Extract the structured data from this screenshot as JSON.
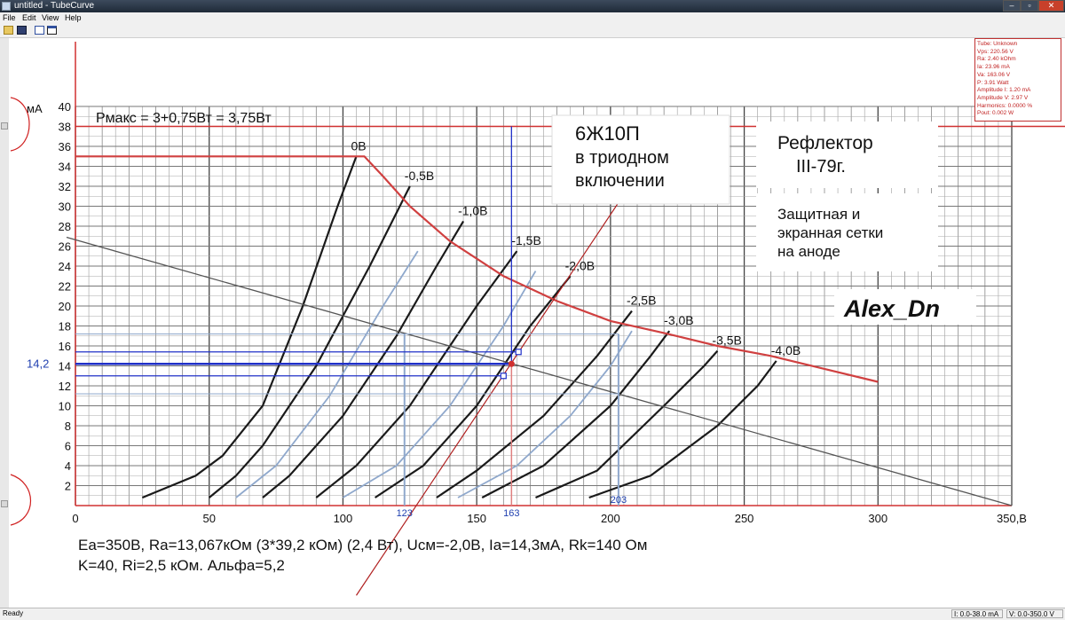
{
  "window": {
    "title": "untitled - TubeCurve",
    "min": "–",
    "max": "▫",
    "close": "✕"
  },
  "menu": [
    "File",
    "Edit",
    "View",
    "Help"
  ],
  "toolbar": {
    "icons": [
      "open-icon",
      "save-icon",
      "copy-icon",
      "window-icon"
    ]
  },
  "info": {
    "lines": [
      "Tube: Unknown",
      "Vps: 220.56 V",
      "Ra: 2.40 kOhm",
      "Ia: 23.96 mA",
      "Va: 163.06 V",
      "P: 3.91 Watt",
      "Amplitude I: 1.20 mA",
      "Amplitude V: 2.97 V",
      "Harmonics: 0.0000 %",
      "Pout: 0.002 W"
    ]
  },
  "status": {
    "left": "Ready",
    "current_range": "I: 0.0-38.0 mA",
    "voltage_range": "V: 0.0-350.0 V"
  },
  "colors": {
    "accent_red": "#d03030",
    "blue": "#2030c8",
    "grid": "#666666",
    "curve_light": "#8fa8cc"
  },
  "chart_data": {
    "type": "line",
    "y_unit": "мА",
    "x_unit": "350,B",
    "xlim": [
      0,
      350
    ],
    "ylim": [
      0,
      40
    ],
    "x_ticks": [
      "0",
      "50",
      "100",
      "150",
      "200",
      "250",
      "300",
      "350,B"
    ],
    "y_ticks": [
      "2",
      "4",
      "6",
      "8",
      "10",
      "12",
      "14",
      "16",
      "18",
      "20",
      "22",
      "24",
      "26",
      "28",
      "30",
      "32",
      "34",
      "36",
      "38",
      "40"
    ],
    "pmax_label": "Pмакс = 3+0,75Вт = 3,75Вт",
    "tube_title": [
      "6Ж10П",
      "в триодном",
      "включении"
    ],
    "source_title": [
      "Рефлектор",
      "III-79г."
    ],
    "note": [
      "Защитная и",
      "экранная сетки",
      "на аноде"
    ],
    "signature": "Alex_Dn",
    "operating_point_labels": {
      "ia": "14,2",
      "va": "163",
      "va_min": "123",
      "va_max": "203"
    },
    "footer": [
      "Ea=350В, Ra=13,067кОм (3*39,2 кОм) (2,4 Вт), Uсм=-2,0В, Ia=14,3мА, Rk=140 Ом",
      "K=40, Ri=2,5 кОм. Альфа=5,2"
    ],
    "curves": [
      {
        "label": "0B",
        "points": [
          [
            25,
            0.8
          ],
          [
            45,
            3
          ],
          [
            55,
            5
          ],
          [
            70,
            10
          ],
          [
            85,
            20
          ],
          [
            98,
            30
          ],
          [
            105,
            35
          ]
        ]
      },
      {
        "label": "-0,5B",
        "points": [
          [
            50,
            0.8
          ],
          [
            60,
            3
          ],
          [
            70,
            6
          ],
          [
            90,
            14
          ],
          [
            110,
            24
          ],
          [
            125,
            32
          ]
        ]
      },
      {
        "label": "-1,0B",
        "points": [
          [
            70,
            0.8
          ],
          [
            80,
            3
          ],
          [
            100,
            9
          ],
          [
            120,
            17
          ],
          [
            135,
            24
          ],
          [
            145,
            28.5
          ]
        ]
      },
      {
        "label": "-1,5B",
        "points": [
          [
            90,
            0.8
          ],
          [
            105,
            4
          ],
          [
            125,
            10
          ],
          [
            150,
            20
          ],
          [
            165,
            25.5
          ]
        ]
      },
      {
        "label": "-2,0B",
        "points": [
          [
            112,
            0.8
          ],
          [
            130,
            4
          ],
          [
            150,
            10
          ],
          [
            170,
            18
          ],
          [
            185,
            23
          ]
        ]
      },
      {
        "label": "-2,5B",
        "points": [
          [
            135,
            0.8
          ],
          [
            150,
            3.5
          ],
          [
            175,
            9
          ],
          [
            195,
            15
          ],
          [
            208,
            19.5
          ]
        ]
      },
      {
        "label": "-3,0B",
        "points": [
          [
            152,
            0.8
          ],
          [
            175,
            4
          ],
          [
            200,
            10
          ],
          [
            215,
            15
          ],
          [
            222,
            17.5
          ]
        ]
      },
      {
        "label": "-3,5B",
        "points": [
          [
            172,
            0.8
          ],
          [
            195,
            3.5
          ],
          [
            220,
            10
          ],
          [
            235,
            14
          ],
          [
            240,
            15.5
          ]
        ]
      },
      {
        "label": "-4,0B",
        "points": [
          [
            192,
            0.8
          ],
          [
            215,
            3
          ],
          [
            240,
            8
          ],
          [
            255,
            12
          ],
          [
            262,
            14.5
          ]
        ]
      }
    ],
    "light_curves": [
      {
        "points": [
          [
            60,
            0.8
          ],
          [
            75,
            4
          ],
          [
            95,
            11
          ],
          [
            115,
            20
          ],
          [
            128,
            25.5
          ]
        ]
      },
      {
        "points": [
          [
            100,
            0.8
          ],
          [
            120,
            4
          ],
          [
            140,
            10
          ],
          [
            160,
            18
          ],
          [
            172,
            23.5
          ]
        ]
      },
      {
        "points": [
          [
            143,
            0.8
          ],
          [
            165,
            4
          ],
          [
            185,
            9
          ],
          [
            200,
            14
          ],
          [
            208,
            17.5
          ]
        ]
      }
    ],
    "pmax_curve": [
      [
        0,
        35
      ],
      [
        108,
        35
      ],
      [
        115,
        33
      ],
      [
        125,
        30
      ],
      [
        140,
        26.5
      ],
      [
        160,
        23
      ],
      [
        180,
        20.5
      ],
      [
        200,
        18.5
      ],
      [
        220,
        17.3
      ],
      [
        240,
        16
      ],
      [
        260,
        15
      ],
      [
        280,
        13.7
      ],
      [
        300,
        12.4
      ]
    ],
    "load_line": [
      [
        0,
        26.8
      ],
      [
        350,
        0
      ]
    ],
    "red_line": [
      [
        105,
        -9
      ],
      [
        222,
        38
      ]
    ],
    "operating_point": [
      163,
      14.2
    ]
  }
}
